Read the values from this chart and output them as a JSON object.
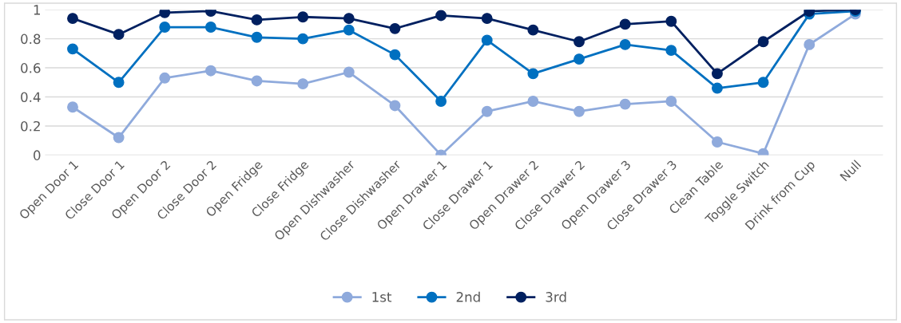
{
  "chart_data": {
    "type": "line",
    "categories": [
      "Open Door 1",
      "Close Door 1",
      "Open Door 2",
      "Close Door 2",
      "Open Fridge",
      "Close Fridge",
      "Open Dishwasher",
      "Close Dishwasher",
      "Open Drawer 1",
      "Close Drawer 1",
      "Open Drawer 2",
      "Close Drawer 2",
      "Open Drawer 3",
      "Close Drawer 3",
      "Clean Table",
      "Toggle Switch",
      "Drink from Cup",
      "Null"
    ],
    "series": [
      {
        "name": "1st",
        "color": "#8faadc",
        "values": [
          0.33,
          0.12,
          0.53,
          0.58,
          0.51,
          0.49,
          0.57,
          0.34,
          0.0,
          0.3,
          0.37,
          0.3,
          0.35,
          0.37,
          0.09,
          0.01,
          0.76,
          0.97
        ]
      },
      {
        "name": "2nd",
        "color": "#0070c0",
        "values": [
          0.73,
          0.5,
          0.88,
          0.88,
          0.81,
          0.8,
          0.86,
          0.69,
          0.37,
          0.79,
          0.56,
          0.66,
          0.76,
          0.72,
          0.46,
          0.5,
          0.97,
          0.99
        ]
      },
      {
        "name": "3rd",
        "color": "#002060",
        "values": [
          0.94,
          0.83,
          0.98,
          0.99,
          0.93,
          0.95,
          0.94,
          0.87,
          0.96,
          0.94,
          0.86,
          0.78,
          0.9,
          0.92,
          0.56,
          0.78,
          0.99,
          1.0
        ]
      }
    ],
    "ylim": [
      0,
      1
    ],
    "yticks": [
      0,
      0.2,
      0.4,
      0.6,
      0.8,
      1
    ],
    "grid": "y",
    "legend": "bottom",
    "marker": "circle",
    "line_style": "solid"
  }
}
